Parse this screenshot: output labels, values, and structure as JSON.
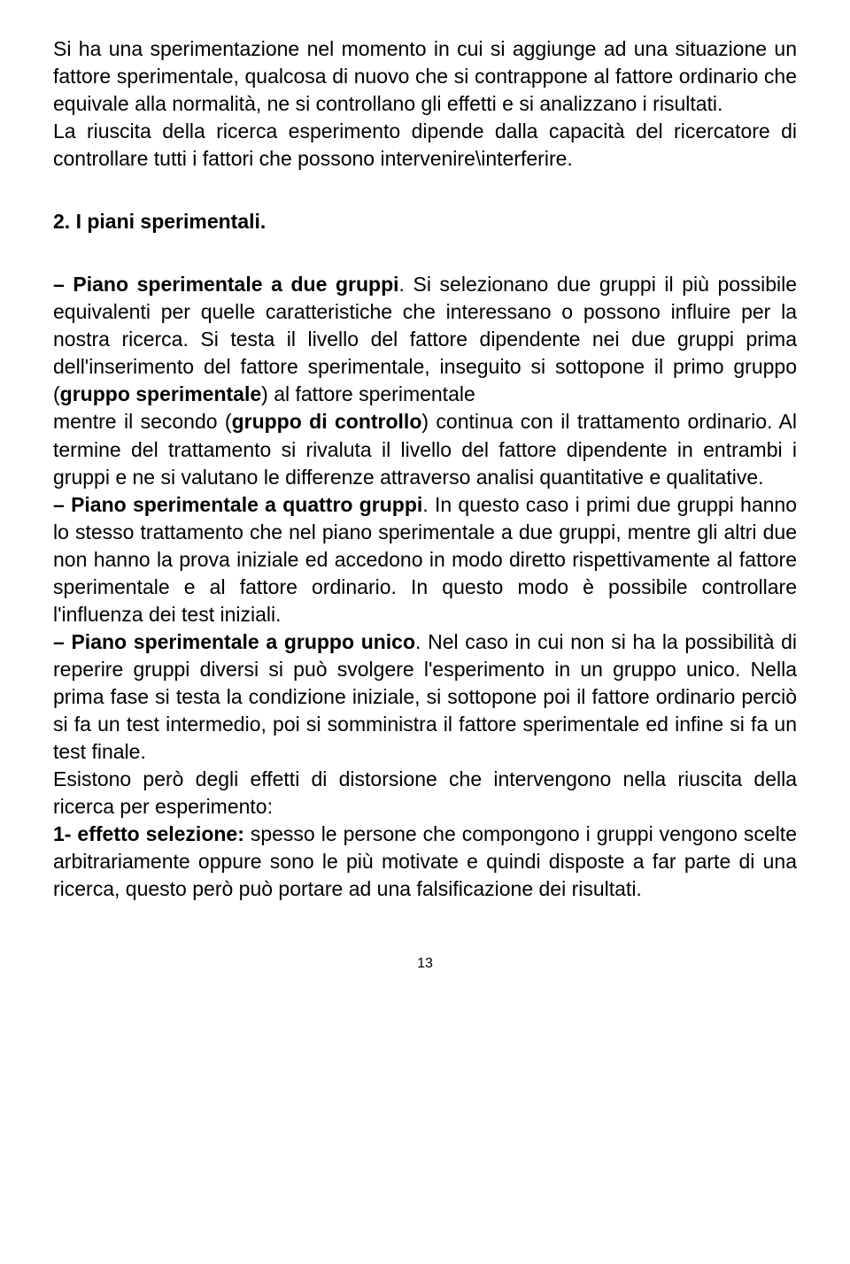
{
  "intro": {
    "p1": "Si ha una sperimentazione nel momento in cui si aggiunge ad una situazione un fattore sperimentale, qualcosa di nuovo che si contrappone al fattore ordinario che equivale alla normalità, ne si controllano gli effetti e si analizzano i risultati.",
    "p2": "La riuscita della ricerca esperimento dipende dalla capacità del ricercatore di controllare tutti i fattori che possono intervenire\\interferire."
  },
  "heading": "2. I piani sperimentali.",
  "body": {
    "s1_bold": "– Piano sperimentale a due gruppi",
    "s1_rest": ". Si selezionano due gruppi il più possibile equivalenti per quelle caratteristiche che interessano o possono influire per la nostra ricerca. Si testa il livello del fattore dipendente nei due gruppi prima dell'inserimento del fattore sperimentale, inseguito si sottopone il primo gruppo (",
    "s1_bold2": "gruppo sperimentale",
    "s1_rest2": ") al fattore sperimentale",
    "s1_line2a": "mentre il secondo (",
    "s1_bold3": "gruppo di controllo",
    "s1_line2b": ") continua con il trattamento ordinario. Al termine del trattamento si rivaluta il livello del fattore dipendente in entrambi i gruppi e ne si valutano le differenze attraverso analisi quantitative e qualitative.",
    "s2_bold": "– Piano sperimentale a quattro gruppi",
    "s2_rest": ". In questo caso i primi due gruppi hanno lo stesso trattamento che nel piano sperimentale a due gruppi, mentre gli altri due non hanno la prova iniziale ed accedono in modo diretto rispettivamente al fattore sperimentale e al fattore ordinario. In questo modo è possibile controllare l'influenza dei test iniziali.",
    "s3_bold": "– Piano sperimentale a gruppo unico",
    "s3_rest": ". Nel caso in cui non si ha la possibilità di reperire gruppi diversi si può svolgere l'esperimento in un gruppo unico. Nella prima fase si testa la condizione iniziale, si sottopone poi il fattore ordinario perciò si fa un test intermedio, poi si somministra il fattore sperimentale ed infine si fa un test finale.",
    "s4": "Esistono però degli effetti di distorsione che intervengono nella riuscita della ricerca per esperimento:",
    "s5_bold": "1- effetto selezione:",
    "s5_rest": " spesso le persone che compongono i gruppi vengono scelte arbitrariamente oppure sono le più motivate e quindi disposte a far parte di una ricerca, questo però può portare ad una falsificazione dei risultati."
  },
  "page_number": "13"
}
